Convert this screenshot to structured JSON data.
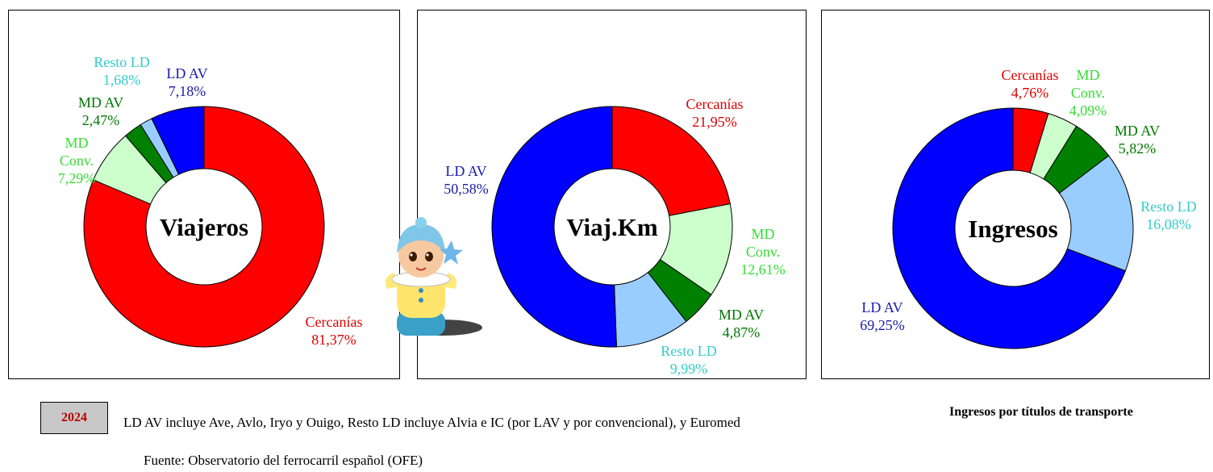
{
  "chart_data": [
    {
      "type": "pie",
      "title": "Viajeros",
      "unit": "%",
      "slices": [
        {
          "name": "Cercanías",
          "value": 81.37,
          "label_value": "81,37%",
          "color": "#ff0000",
          "label_color": "#dd0000"
        },
        {
          "name": "MD Conv.",
          "value": 7.29,
          "label_value": "7,29%",
          "color": "#ccffcc",
          "label_color": "#33dd33"
        },
        {
          "name": "MD AV",
          "value": 2.47,
          "label_value": "2,47%",
          "color": "#008000",
          "label_color": "#007700"
        },
        {
          "name": "Resto LD",
          "value": 1.68,
          "label_value": "1,68%",
          "color": "#99ccff",
          "label_color": "#33cccc"
        },
        {
          "name": "LD AV",
          "value": 7.18,
          "label_value": "7,18%",
          "color": "#0000ff",
          "label_color": "#1a1aaa"
        }
      ]
    },
    {
      "type": "pie",
      "title": "Viaj.Km",
      "unit": "%",
      "slices": [
        {
          "name": "Cercanías",
          "value": 21.95,
          "label_value": "21,95%",
          "color": "#ff0000",
          "label_color": "#dd0000"
        },
        {
          "name": "MD Conv.",
          "value": 12.61,
          "label_value": "12,61%",
          "color": "#ccffcc",
          "label_color": "#33dd33"
        },
        {
          "name": "MD AV",
          "value": 4.87,
          "label_value": "4,87%",
          "color": "#008000",
          "label_color": "#007700"
        },
        {
          "name": "Resto LD",
          "value": 9.99,
          "label_value": "9,99%",
          "color": "#99ccff",
          "label_color": "#33cccc"
        },
        {
          "name": "LD AV",
          "value": 50.58,
          "label_value": "50,58%",
          "color": "#0000ff",
          "label_color": "#1a1aaa"
        }
      ]
    },
    {
      "type": "pie",
      "title": "Ingresos",
      "unit": "%",
      "slices": [
        {
          "name": "Cercanías",
          "value": 4.76,
          "label_value": "4,76%",
          "color": "#ff0000",
          "label_color": "#dd0000"
        },
        {
          "name": "MD Conv.",
          "value": 4.09,
          "label_value": "4,09%",
          "color": "#ccffcc",
          "label_color": "#33dd33"
        },
        {
          "name": "MD AV",
          "value": 5.82,
          "label_value": "5,82%",
          "color": "#008000",
          "label_color": "#007700"
        },
        {
          "name": "Resto LD",
          "value": 16.08,
          "label_value": "16,08%",
          "color": "#99ccff",
          "label_color": "#33cccc"
        },
        {
          "name": "LD AV",
          "value": 69.25,
          "label_value": "69,25%",
          "color": "#0000ff",
          "label_color": "#1a1aaa"
        }
      ]
    }
  ],
  "footer": {
    "year": "2024",
    "note": "LD AV incluye Ave, Avlo, Iryo y Ouigo, Resto LD incluye Alvia e IC (por LAV y por convencional), y Euromed",
    "source": "Fuente: Observatorio del ferrocarril español (OFE)",
    "subtitle": "Ingresos por títulos de transporte"
  },
  "mascot": {
    "icon": "doll-mascot-icon"
  }
}
